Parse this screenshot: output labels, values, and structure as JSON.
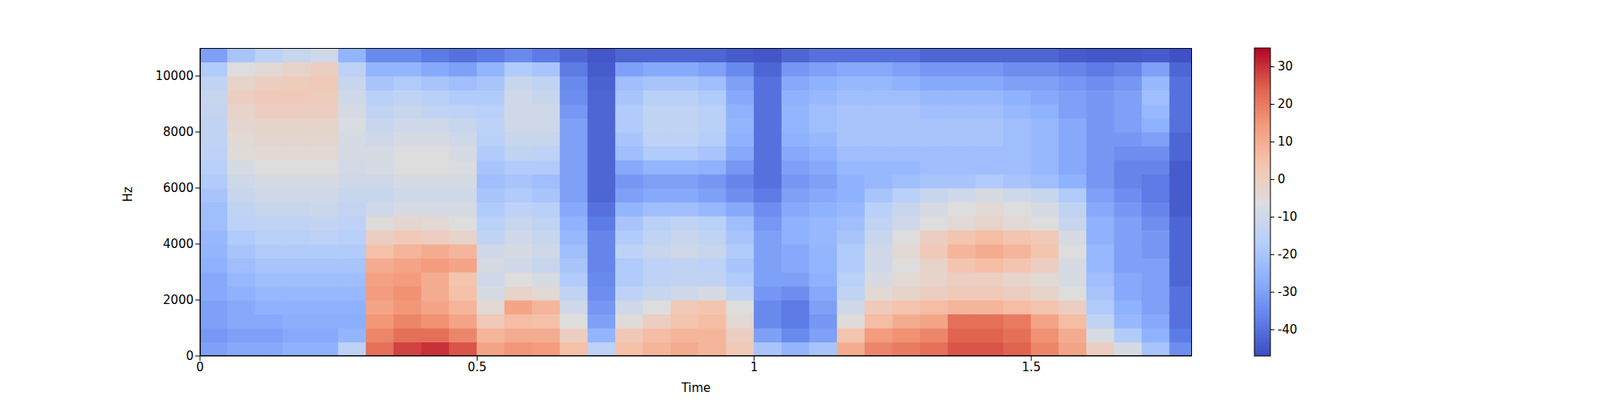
{
  "chart_data": {
    "type": "heatmap",
    "x_label": "Time",
    "y_label": "Hz",
    "xlim": [
      0,
      1.79
    ],
    "xticks": [
      0,
      0.5,
      1,
      1.5
    ],
    "ylim": [
      0,
      11000
    ],
    "yticks": [
      0,
      2000,
      4000,
      6000,
      8000,
      10000
    ],
    "cells": {
      "time_start": 0,
      "time_step": 0.05,
      "freq_start": 0,
      "freq_step": 500,
      "values": [
        [
          -30,
          -32,
          -30,
          -30,
          -28,
          -28,
          -26,
          -25,
          -24,
          -22,
          -22,
          -20,
          -18,
          -16,
          -15,
          -14,
          -14,
          -13,
          -12,
          -14,
          -18,
          -30
        ],
        [
          -28,
          -30,
          -28,
          -28,
          -26,
          -24,
          -22,
          -20,
          -18,
          -15,
          -14,
          -12,
          -10,
          -8,
          -5,
          -4,
          -3,
          -2,
          0,
          -2,
          -6,
          -20
        ],
        [
          -28,
          -30,
          -28,
          -26,
          -24,
          -22,
          -20,
          -18,
          -16,
          -14,
          -12,
          -10,
          -8,
          -6,
          -4,
          -3,
          -2,
          0,
          2,
          0,
          -4,
          -15
        ],
        [
          -26,
          -28,
          -27,
          -26,
          -24,
          -22,
          -20,
          -18,
          -16,
          -14,
          -12,
          -10,
          -8,
          -6,
          -4,
          -3,
          -2,
          0,
          2,
          1,
          -2,
          -12
        ],
        [
          -26,
          -28,
          -27,
          -26,
          -24,
          -22,
          -20,
          -18,
          -15,
          -13,
          -11,
          -10,
          -8,
          -6,
          -4,
          -3,
          -2,
          0,
          1,
          2,
          0,
          -10
        ],
        [
          -15,
          -25,
          -27,
          -26,
          -24,
          -22,
          -20,
          -18,
          -16,
          -15,
          -13,
          -12,
          -10,
          -9,
          -8,
          -8,
          -7,
          -8,
          -10,
          -12,
          -15,
          -25
        ],
        [
          22,
          18,
          15,
          12,
          14,
          13,
          10,
          5,
          0,
          -5,
          -10,
          -12,
          -10,
          -8,
          -8,
          -10,
          -12,
          -14,
          -16,
          -20,
          -25,
          -35
        ],
        [
          28,
          22,
          18,
          15,
          16,
          14,
          12,
          8,
          2,
          -3,
          -8,
          -10,
          -8,
          -6,
          -6,
          -8,
          -10,
          -12,
          -14,
          -18,
          -25,
          -35
        ],
        [
          30,
          22,
          16,
          12,
          10,
          10,
          14,
          10,
          0,
          -4,
          -8,
          -10,
          -8,
          -6,
          -6,
          -8,
          -10,
          -14,
          -16,
          -20,
          -28,
          -38
        ],
        [
          26,
          18,
          12,
          8,
          5,
          4,
          12,
          8,
          -2,
          -6,
          -8,
          -10,
          -8,
          -7,
          -8,
          -10,
          -12,
          -15,
          -18,
          -22,
          -30,
          -40
        ],
        [
          12,
          8,
          2,
          -4,
          -8,
          -10,
          -8,
          -10,
          -14,
          -16,
          -18,
          -20,
          -22,
          -20,
          -18,
          -16,
          -15,
          -16,
          -18,
          -20,
          -25,
          -38
        ],
        [
          15,
          10,
          6,
          12,
          -2,
          -6,
          -10,
          -8,
          -10,
          -12,
          -15,
          -18,
          -20,
          -18,
          -14,
          -12,
          -10,
          -10,
          -10,
          -12,
          -18,
          -35
        ],
        [
          14,
          10,
          5,
          8,
          -4,
          -8,
          -12,
          -10,
          -12,
          -14,
          -16,
          -20,
          -22,
          -18,
          -15,
          -12,
          -10,
          -10,
          -12,
          -14,
          -20,
          -38
        ],
        [
          5,
          0,
          -6,
          -10,
          -14,
          -18,
          -20,
          -22,
          -24,
          -26,
          -28,
          -30,
          -30,
          -30,
          -30,
          -30,
          -30,
          -32,
          -34,
          -35,
          -38,
          -42
        ],
        [
          -15,
          -25,
          -30,
          -32,
          -34,
          -35,
          -36,
          -36,
          -36,
          -38,
          -40,
          -42,
          -42,
          -42,
          -42,
          -42,
          -42,
          -42,
          -42,
          -43,
          -44,
          -45
        ],
        [
          5,
          2,
          -5,
          -10,
          -15,
          -18,
          -18,
          -15,
          -18,
          -20,
          -25,
          -30,
          -32,
          -28,
          -22,
          -20,
          -18,
          -18,
          -20,
          -22,
          -30,
          -42
        ],
        [
          8,
          6,
          0,
          -6,
          -12,
          -15,
          -15,
          -12,
          -14,
          -16,
          -22,
          -28,
          -30,
          -25,
          -18,
          -15,
          -14,
          -14,
          -16,
          -20,
          -28,
          -42
        ],
        [
          10,
          8,
          4,
          2,
          -10,
          -14,
          -14,
          -10,
          -12,
          -14,
          -22,
          -28,
          -30,
          -25,
          -18,
          -15,
          -14,
          -14,
          -16,
          -20,
          -28,
          -42
        ],
        [
          8,
          8,
          6,
          4,
          -8,
          -14,
          -15,
          -12,
          -14,
          -16,
          -24,
          -30,
          -32,
          -26,
          -20,
          -17,
          -16,
          -16,
          -18,
          -22,
          -30,
          -42
        ],
        [
          2,
          0,
          -4,
          -6,
          -14,
          -18,
          -20,
          -18,
          -20,
          -22,
          -28,
          -34,
          -36,
          -32,
          -28,
          -26,
          -25,
          -26,
          -28,
          -30,
          -35,
          -44
        ],
        [
          -20,
          -30,
          -35,
          -35,
          -32,
          -30,
          -30,
          -30,
          -30,
          -32,
          -34,
          -38,
          -40,
          -40,
          -40,
          -40,
          -40,
          -40,
          -40,
          -40,
          -42,
          -45
        ],
        [
          -25,
          -35,
          -38,
          -38,
          -34,
          -30,
          -28,
          -28,
          -26,
          -26,
          -28,
          -30,
          -32,
          -30,
          -28,
          -26,
          -25,
          -25,
          -26,
          -28,
          -32,
          -42
        ],
        [
          -20,
          -30,
          -32,
          -30,
          -28,
          -26,
          -25,
          -25,
          -24,
          -24,
          -26,
          -28,
          -30,
          -28,
          -26,
          -24,
          -22,
          -22,
          -24,
          -26,
          -30,
          -40
        ],
        [
          10,
          4,
          -5,
          -10,
          -14,
          -16,
          -18,
          -18,
          -20,
          -22,
          -24,
          -26,
          -26,
          -24,
          -22,
          -20,
          -20,
          -20,
          -22,
          -24,
          -28,
          -40
        ],
        [
          18,
          14,
          6,
          2,
          -4,
          -8,
          -10,
          -10,
          -12,
          -14,
          -16,
          -20,
          -24,
          -24,
          -22,
          -20,
          -20,
          -20,
          -22,
          -24,
          -28,
          -40
        ],
        [
          20,
          16,
          10,
          4,
          -2,
          -4,
          -6,
          -4,
          -6,
          -10,
          -12,
          -16,
          -22,
          -24,
          -22,
          -20,
          -20,
          -20,
          -22,
          -26,
          -30,
          -40
        ],
        [
          22,
          18,
          12,
          6,
          0,
          -2,
          -2,
          2,
          0,
          -6,
          -8,
          -12,
          -20,
          -22,
          -22,
          -20,
          -20,
          -22,
          -24,
          -28,
          -32,
          -42
        ],
        [
          26,
          24,
          22,
          8,
          2,
          0,
          4,
          8,
          4,
          -4,
          -6,
          -10,
          -20,
          -22,
          -22,
          -20,
          -20,
          -22,
          -24,
          -28,
          -32,
          -42
        ],
        [
          26,
          24,
          22,
          8,
          2,
          0,
          6,
          10,
          6,
          -2,
          -4,
          -8,
          -18,
          -22,
          -22,
          -20,
          -20,
          -22,
          -24,
          -28,
          -32,
          -42
        ],
        [
          24,
          22,
          20,
          6,
          0,
          -2,
          4,
          8,
          4,
          -4,
          -6,
          -10,
          -20,
          -22,
          -22,
          -22,
          -22,
          -24,
          -26,
          -30,
          -34,
          -42
        ],
        [
          18,
          16,
          12,
          4,
          -2,
          -4,
          0,
          4,
          2,
          -6,
          -8,
          -12,
          -22,
          -24,
          -24,
          -24,
          -24,
          -26,
          -28,
          -30,
          -34,
          -42
        ],
        [
          12,
          10,
          6,
          0,
          -6,
          -8,
          -8,
          -6,
          -8,
          -12,
          -14,
          -18,
          -26,
          -28,
          -28,
          -28,
          -28,
          -30,
          -30,
          -32,
          -36,
          -44
        ],
        [
          0,
          -8,
          -14,
          -18,
          -20,
          -22,
          -24,
          -24,
          -26,
          -26,
          -28,
          -30,
          -32,
          -32,
          -32,
          -32,
          -32,
          -32,
          -32,
          -34,
          -38,
          -45
        ],
        [
          -8,
          -18,
          -24,
          -26,
          -28,
          -28,
          -30,
          -30,
          -30,
          -30,
          -32,
          -34,
          -36,
          -36,
          -34,
          -32,
          -30,
          -30,
          -30,
          -32,
          -36,
          -45
        ],
        [
          -20,
          -26,
          -28,
          -30,
          -30,
          -30,
          -30,
          -32,
          -32,
          -34,
          -36,
          -38,
          -38,
          -36,
          -34,
          -30,
          -26,
          -24,
          -22,
          -24,
          -30,
          -44
        ],
        [
          -34,
          -38,
          -40,
          -40,
          -40,
          -42,
          -42,
          -42,
          -42,
          -42,
          -44,
          -44,
          -44,
          -44,
          -42,
          -42,
          -40,
          -40,
          -40,
          -40,
          -42,
          -46
        ]
      ]
    },
    "colorbar": {
      "range": [
        -47,
        35
      ],
      "ticks": [
        -40,
        -30,
        -20,
        -10,
        0,
        10,
        20,
        30
      ]
    }
  }
}
